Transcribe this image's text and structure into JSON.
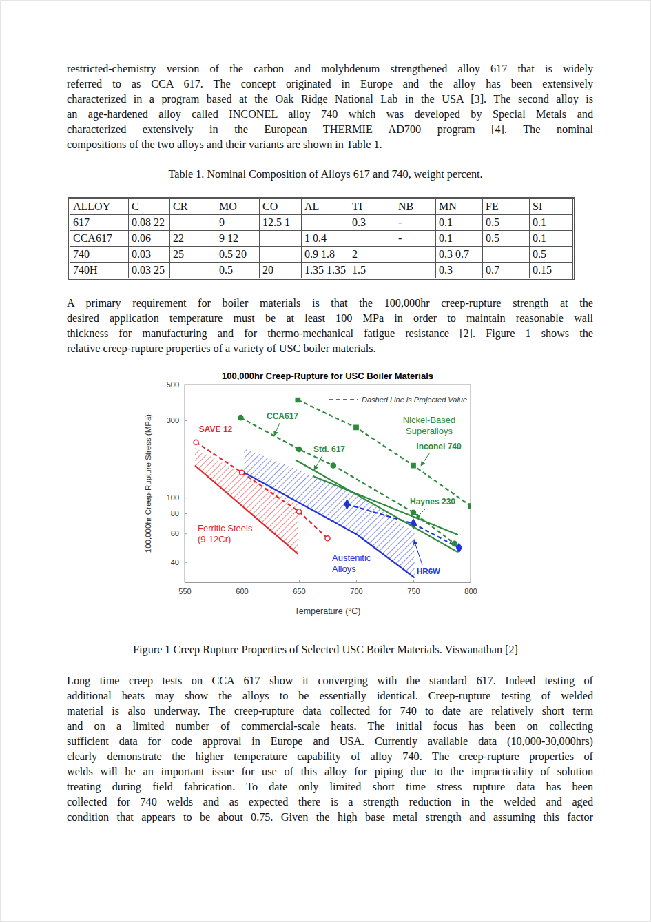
{
  "chart_data": {
    "type": "line",
    "title": "100,000hr Creep-Rupture for USC Boiler Materials",
    "xlabel": "Temperature (°C)",
    "ylabel": "100,000hr Creep-Rupture Stress (MPa)",
    "xlim": [
      550,
      800
    ],
    "xticks": [
      550,
      600,
      650,
      700,
      750,
      800
    ],
    "ylim": [
      30,
      500
    ],
    "yticks": [
      40,
      60,
      80,
      100,
      300,
      500
    ],
    "log": "y",
    "grid": false,
    "series": [
      {
        "name": [
          "Ferritic Steels",
          "(9-12Cr)"
        ],
        "type": "band",
        "color": "#e3262b",
        "line_style": "solid",
        "x": [
          559,
          649
        ],
        "upper": [
          203,
          91
        ],
        "lower": [
          158,
          45
        ]
      },
      {
        "name": "SAVE 12",
        "type": "line",
        "color": "#e3262b",
        "line_style": "dashed",
        "marker": "open-circle",
        "x": [
          560,
          600,
          650,
          675
        ],
        "values": [
          220,
          143,
          82,
          56
        ]
      },
      {
        "name": [
          "Austenitic",
          "Alloys"
        ],
        "type": "band",
        "color": "#2134d6",
        "line_style": "solid",
        "x": [
          602,
          701,
          751
        ],
        "upper": [
          203,
          105,
          61
        ],
        "lower": [
          143,
          59,
          32
        ]
      },
      {
        "name": "HR6W",
        "type": "line",
        "color": "#2134d6",
        "line_style": "dashed",
        "marker": "diamond",
        "x": [
          692,
          750,
          790
        ],
        "values": [
          91,
          69,
          49
        ]
      },
      {
        "name": "CCA617",
        "type": "line",
        "color": "#2e8a3c",
        "line_style": "dashed",
        "marker": "circle",
        "x": [
          599,
          650,
          680,
          750,
          786
        ],
        "values": [
          312,
          199,
          158,
          81,
          52
        ]
      },
      {
        "name": "Std. 617",
        "type": "line",
        "color": "#2e8a3c",
        "line_style": "solid",
        "marker": "none",
        "x": [
          647,
          789
        ],
        "values": [
          171,
          46
        ]
      },
      {
        "name": "Haynes 230",
        "type": "line",
        "color": "#2e8a3c",
        "line_style": "solid",
        "marker": "none",
        "x": [
          662,
          789
        ],
        "values": [
          136,
          59
        ]
      },
      {
        "name": "Inconel 740",
        "type": "line",
        "color": "#2e8a3c",
        "line_style": "dashed",
        "marker": "square",
        "x": [
          649,
          700,
          750,
          800
        ],
        "values": [
          401,
          271,
          158,
          89
        ]
      }
    ],
    "annotations": [
      {
        "text": "Dashed Line is Projected Value",
        "line_style": "dashed",
        "color": "#333333"
      },
      {
        "text": [
          "Nickel-Based",
          "Superalloys"
        ],
        "color": "#2e8a3c"
      }
    ]
  },
  "document": {
    "paragraphs": [
      [
        "restricted-chemistry version of the carbon and molybdenum strengthened alloy 617 that is widely",
        "referred to as CCA 617. The concept originated in Europe and the alloy has been extensively",
        "characterized in a program based at the Oak Ridge National Lab in the USA [3]. The second alloy is",
        "an age-hardened alloy called INCONEL alloy 740 which was developed by Special Metals and",
        "characterized extensively in the European THERMIE AD700 program [4]. The nominal",
        "compositions of the two alloys and their variants are shown in Table 1."
      ],
      [
        "A primary requirement for boiler materials is that the 100,000hr creep-rupture strength at the",
        "desired application temperature must be at least 100 MPa in order to maintain reasonable wall",
        "thickness for manufacturing and for thermo-mechanical fatigue resistance [2]. Figure 1 shows the",
        "relative creep-rupture properties of a variety of USC boiler materials."
      ],
      [
        "Long time creep tests on CCA 617 show it converging with the standard 617. Indeed testing of",
        "additional heats may show the alloys to be essentially identical. Creep-rupture testing of welded",
        "material is also underway. The creep-rupture data collected for 740 to date are relatively short term",
        "and on a limited number of commercial-scale heats. The initial focus has been on collecting",
        "sufficient data for code approval in Europe and USA. Currently available data (10,000-30,000hrs)",
        "clearly demonstrate the higher temperature capability of alloy 740. The creep-rupture properties of",
        "welds will be an important issue for use of this alloy for piping due to the impracticality of solution",
        "treating during field fabrication. To date only limited short time stress rupture data has been",
        "collected for 740 welds and as expected there is a strength reduction in the welded and aged",
        "condition that appears to be about 0.75. Given the high base metal strength and assuming this factor"
      ]
    ],
    "table_caption": "Table 1. Nominal Composition of Alloys 617 and 740, weight percent.",
    "table": {
      "header": [
        "ALLOY",
        "C",
        "CR",
        "MO",
        "CO",
        "AL",
        "TI",
        "NB",
        "MN",
        "FE",
        "SI"
      ],
      "rows": [
        [
          "617",
          "0.08 22",
          null,
          "9",
          "12.5 1",
          null,
          "0.3",
          "-",
          "0.1",
          "0.5",
          "0.1"
        ],
        [
          "CCA617",
          "0.06",
          "22",
          "9 12",
          null,
          "1 0.4",
          null,
          "-",
          "0.1",
          "0.5",
          "0.1"
        ],
        [
          "740",
          "0.03",
          "25",
          "0.5 20",
          null,
          "0.9 1.8",
          "2",
          null,
          "0.3 0.7",
          null,
          "0.5"
        ],
        [
          "740H",
          "0.03 25",
          null,
          "0.5",
          "20",
          "1.35 1.35",
          "1.5",
          null,
          "0.3",
          "0.7",
          "0.15"
        ]
      ]
    },
    "figure_caption": "Figure 1 Creep Rupture Properties of Selected USC Boiler Materials. Viswanathan [2]"
  }
}
